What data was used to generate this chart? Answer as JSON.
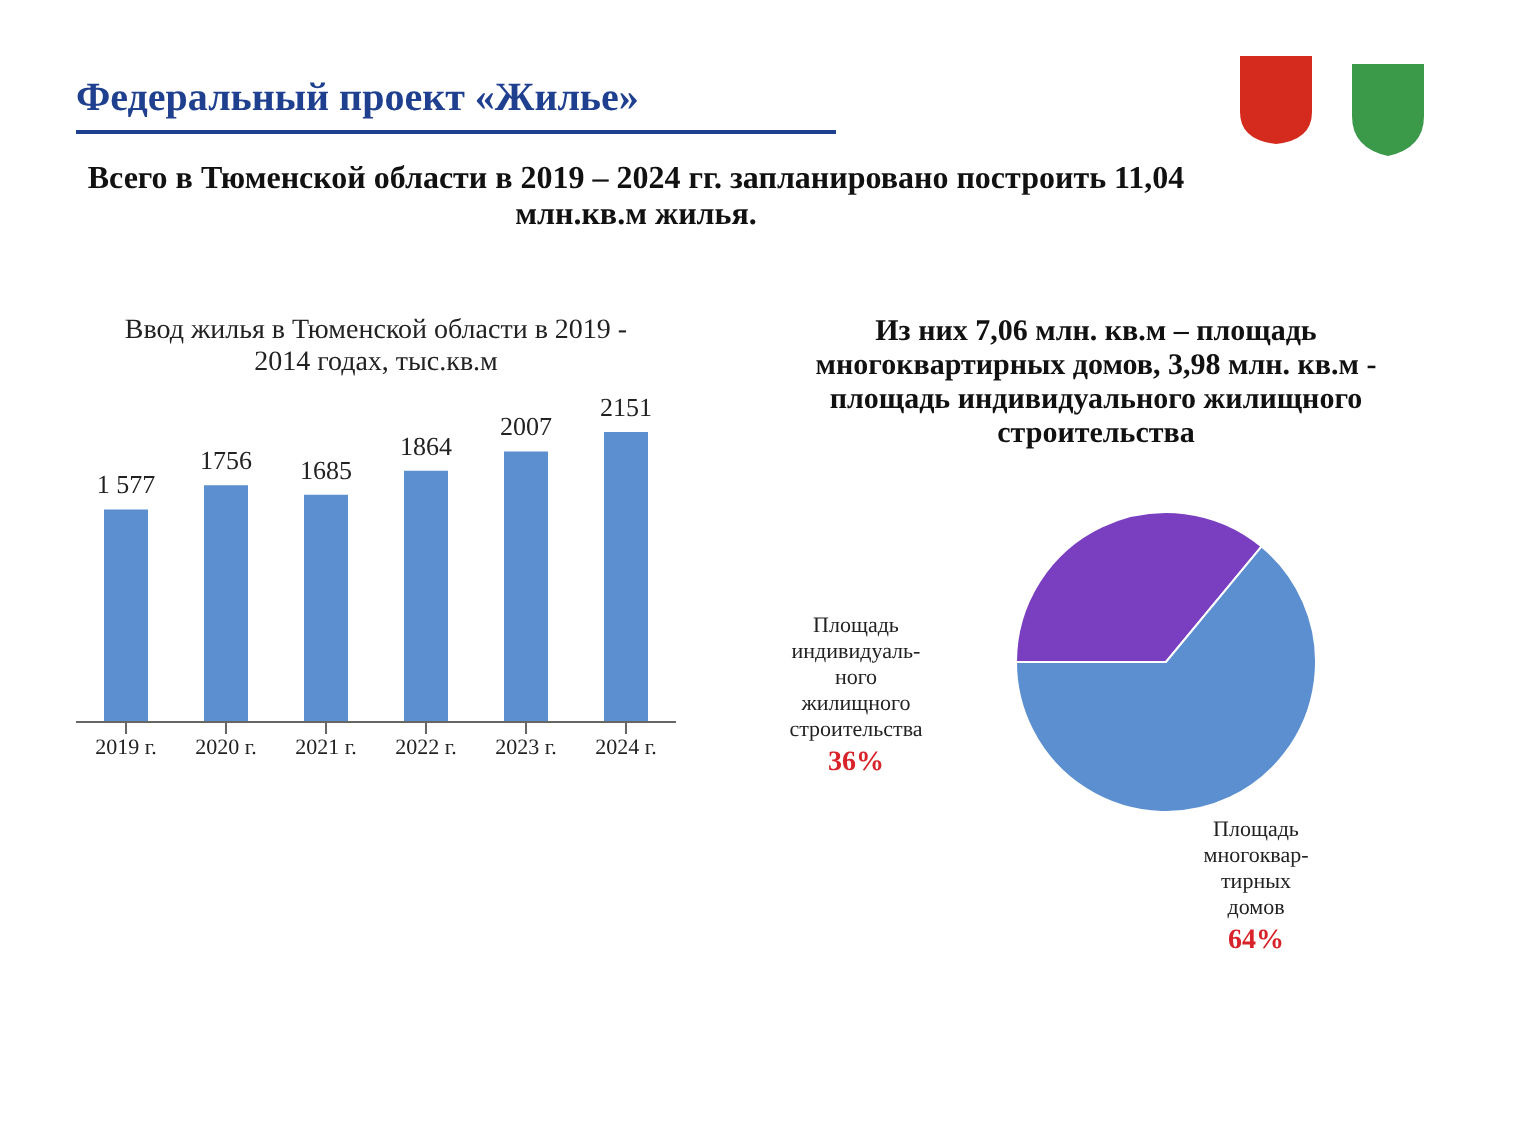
{
  "chart_data": [
    {
      "type": "other",
      "title": "Федеральный проект «Жилье»",
      "subtitle": "Всего в Тюменской области в 2019 – 2024 гг. запланировано построить 11,04 млн.кв.м жилья."
    },
    {
      "type": "bar",
      "title": "Ввод жилья в Тюменской области в 2019 - 2014 годах, тыс.кв.м",
      "categories": [
        "2019 г.",
        "2020 г.",
        "2021 г.",
        "2022 г.",
        "2023 г.",
        "2024 г."
      ],
      "values": [
        1577,
        1756,
        1685,
        1864,
        2007,
        2151
      ],
      "value_labels": [
        "1 577",
        "1756",
        "1685",
        "1864",
        "2007",
        "2151"
      ],
      "color": "#5b8fd0"
    },
    {
      "type": "pie",
      "title": "Из них 7,06 млн. кв.м – площадь многоквартирных домов, 3,98 млн. кв.м - площадь индивидуального жилищного строительства",
      "categories": [
        "Площадь индивидуаль-ного жилищного строительства",
        "Площадь многоквар-тирных домов"
      ],
      "values": [
        36,
        64
      ],
      "colors": [
        "#7a3fc0",
        "#5b8fd0"
      ],
      "value_labels": [
        "36%",
        "64%"
      ]
    }
  ]
}
